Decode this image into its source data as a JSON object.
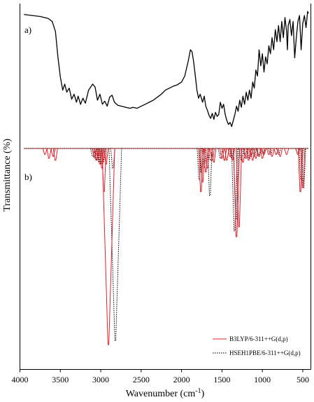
{
  "chart_data": {
    "type": "line",
    "xlabel": "Wavenumber (cm",
    "xlabel_sup": "-1",
    "xlabel_tail": ")",
    "ylabel": "Transmittance (%)",
    "xlim": [
      4000,
      400
    ],
    "x_reversed": true,
    "x_ticks": [
      4000,
      3500,
      3000,
      2500,
      2000,
      1500,
      1000,
      500
    ],
    "grid": false,
    "panels": [
      {
        "label": "a)",
        "series": [
          {
            "name": "",
            "color": "#000000",
            "style": "solid",
            "points": [
              [
                3950,
                97
              ],
              [
                3850,
                96
              ],
              [
                3750,
                95
              ],
              [
                3650,
                93
              ],
              [
                3600,
                90
              ],
              [
                3560,
                80
              ],
              [
                3530,
                55
              ],
              [
                3500,
                35
              ],
              [
                3470,
                22
              ],
              [
                3445,
                28
              ],
              [
                3420,
                20
              ],
              [
                3390,
                24
              ],
              [
                3360,
                13
              ],
              [
                3330,
                18
              ],
              [
                3300,
                10
              ],
              [
                3280,
                16
              ],
              [
                3250,
                8
              ],
              [
                3220,
                14
              ],
              [
                3190,
                9
              ],
              [
                3150,
                22
              ],
              [
                3100,
                28
              ],
              [
                3070,
                25
              ],
              [
                3040,
                12
              ],
              [
                3010,
                18
              ],
              [
                2980,
                8
              ],
              [
                2950,
                11
              ],
              [
                2920,
                6
              ],
              [
                2890,
                15
              ],
              [
                2860,
                17
              ],
              [
                2830,
                10
              ],
              [
                2790,
                7
              ],
              [
                2740,
                6
              ],
              [
                2690,
                5
              ],
              [
                2640,
                4
              ],
              [
                2600,
                5
              ],
              [
                2550,
                4
              ],
              [
                2500,
                6
              ],
              [
                2450,
                8
              ],
              [
                2400,
                10
              ],
              [
                2350,
                12
              ],
              [
                2300,
                15
              ],
              [
                2250,
                18
              ],
              [
                2200,
                22
              ],
              [
                2150,
                24
              ],
              [
                2100,
                26
              ],
              [
                2060,
                27
              ],
              [
                2000,
                30
              ],
              [
                1960,
                36
              ],
              [
                1920,
                50
              ],
              [
                1890,
                62
              ],
              [
                1870,
                60
              ],
              [
                1850,
                50
              ],
              [
                1830,
                36
              ],
              [
                1810,
                22
              ],
              [
                1790,
                14
              ],
              [
                1770,
                18
              ],
              [
                1740,
                10
              ],
              [
                1720,
                16
              ],
              [
                1700,
                6
              ],
              [
                1680,
                2
              ],
              [
                1660,
                -3
              ],
              [
                1640,
                -6
              ],
              [
                1620,
                -1
              ],
              [
                1600,
                -7
              ],
              [
                1580,
                0
              ],
              [
                1560,
                -4
              ],
              [
                1540,
                -2
              ],
              [
                1520,
                10
              ],
              [
                1500,
                4
              ],
              [
                1480,
                8
              ],
              [
                1460,
                -2
              ],
              [
                1440,
                -8
              ],
              [
                1420,
                -12
              ],
              [
                1400,
                -10
              ],
              [
                1380,
                -14
              ],
              [
                1360,
                -8
              ],
              [
                1340,
                -2
              ],
              [
                1320,
                6
              ],
              [
                1300,
                1
              ],
              [
                1280,
                12
              ],
              [
                1260,
                5
              ],
              [
                1240,
                16
              ],
              [
                1220,
                8
              ],
              [
                1200,
                20
              ],
              [
                1180,
                12
              ],
              [
                1160,
                22
              ],
              [
                1140,
                14
              ],
              [
                1120,
                30
              ],
              [
                1100,
                24
              ],
              [
                1080,
                42
              ],
              [
                1060,
                36
              ],
              [
                1040,
                62
              ],
              [
                1020,
                46
              ],
              [
                1000,
                58
              ],
              [
                980,
                40
              ],
              [
                960,
                55
              ],
              [
                940,
                48
              ],
              [
                920,
                66
              ],
              [
                900,
                58
              ],
              [
                880,
                74
              ],
              [
                860,
                62
              ],
              [
                840,
                82
              ],
              [
                820,
                70
              ],
              [
                800,
                86
              ],
              [
                780,
                70
              ],
              [
                760,
                90
              ],
              [
                740,
                74
              ],
              [
                720,
                94
              ],
              [
                700,
                80
              ],
              [
                690,
                62
              ],
              [
                680,
                86
              ],
              [
                660,
                92
              ],
              [
                640,
                76
              ],
              [
                620,
                90
              ],
              [
                600,
                54
              ],
              [
                580,
                74
              ],
              [
                560,
                90
              ],
              [
                540,
                96
              ],
              [
                520,
                62
              ],
              [
                500,
                88
              ],
              [
                480,
                96
              ],
              [
                460,
                84
              ],
              [
                440,
                100
              ],
              [
                430,
                98
              ]
            ]
          }
        ]
      },
      {
        "label": "b)",
        "series": [
          {
            "name": "B3LYP/6-311++G(d,p)",
            "color": "#e32028",
            "style": "solid",
            "sticks": [
              [
                3690,
                0.03
              ],
              [
                3640,
                0.05
              ],
              [
                3590,
                0.04
              ],
              [
                3560,
                0.06
              ],
              [
                3080,
                0.04
              ],
              [
                3055,
                0.06
              ],
              [
                3035,
                0.05
              ],
              [
                3010,
                0.08
              ],
              [
                2985,
                0.1
              ],
              [
                2960,
                0.22
              ],
              [
                2935,
                0.08
              ],
              [
                2905,
                1.0
              ],
              [
                1760,
                0.22
              ],
              [
                1740,
                0.17
              ],
              [
                1700,
                0.12
              ],
              [
                1680,
                0.1
              ],
              [
                1620,
                0.06
              ],
              [
                1600,
                0.07
              ],
              [
                1500,
                0.05
              ],
              [
                1470,
                0.06
              ],
              [
                1440,
                0.06
              ],
              [
                1400,
                0.04
              ],
              [
                1370,
                0.06
              ],
              [
                1320,
                0.45
              ],
              [
                1290,
                0.4
              ],
              [
                1240,
                0.07
              ],
              [
                1200,
                0.05
              ],
              [
                1170,
                0.06
              ],
              [
                1140,
                0.04
              ],
              [
                1120,
                0.06
              ],
              [
                1080,
                0.05
              ],
              [
                1040,
                0.04
              ],
              [
                1000,
                0.05
              ],
              [
                980,
                0.03
              ],
              [
                920,
                0.03
              ],
              [
                880,
                0.04
              ],
              [
                830,
                0.03
              ],
              [
                780,
                0.04
              ],
              [
                700,
                0.03
              ],
              [
                560,
                0.03
              ],
              [
                530,
                0.22
              ],
              [
                500,
                0.2
              ]
            ]
          },
          {
            "name": "HSEH1PBE/6-311++G(d,p)",
            "color": "#000000",
            "style": "dotted",
            "sticks": [
              [
                3100,
                0.04
              ],
              [
                3075,
                0.05
              ],
              [
                3050,
                0.06
              ],
              [
                3020,
                0.07
              ],
              [
                2995,
                0.08
              ],
              [
                2970,
                0.07
              ],
              [
                2850,
                0.1
              ],
              [
                2820,
                0.98
              ],
              [
                1780,
                0.16
              ],
              [
                1755,
                0.12
              ],
              [
                1720,
                0.1
              ],
              [
                1650,
                0.24
              ],
              [
                1640,
                0.06
              ],
              [
                1520,
                0.05
              ],
              [
                1470,
                0.06
              ],
              [
                1380,
                0.05
              ],
              [
                1345,
                0.42
              ],
              [
                1325,
                0.36
              ],
              [
                1260,
                0.06
              ],
              [
                1215,
                0.05
              ],
              [
                1160,
                0.05
              ],
              [
                1100,
                0.04
              ],
              [
                1050,
                0.04
              ],
              [
                990,
                0.03
              ],
              [
                900,
                0.03
              ],
              [
                800,
                0.03
              ],
              [
                560,
                0.03
              ],
              [
                520,
                0.16
              ],
              [
                490,
                0.2
              ]
            ]
          }
        ],
        "legend": {
          "placement": "bottom-right",
          "entries": [
            "B3LYP/6-311++G(d,p)",
            "HSEH1PBE/6-311++G(d,p)"
          ]
        }
      }
    ]
  }
}
